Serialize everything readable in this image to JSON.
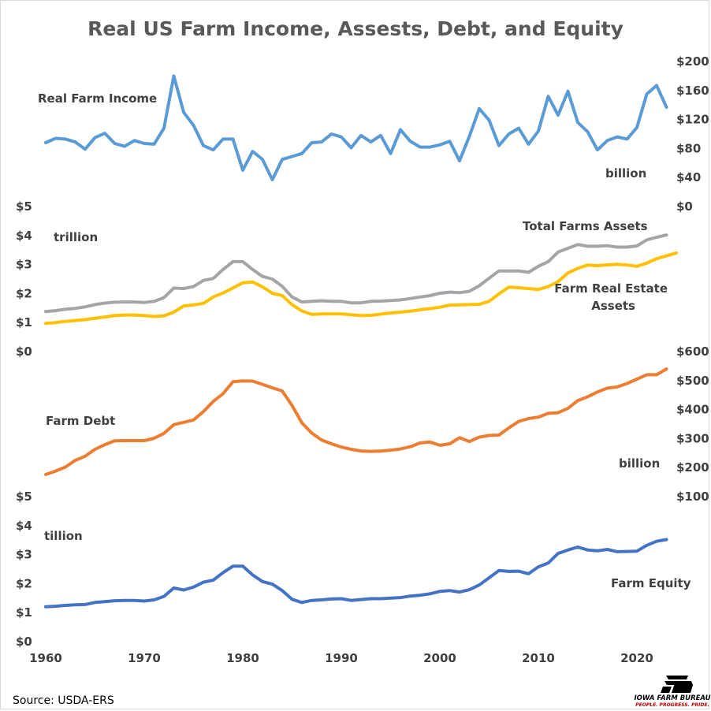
{
  "title": "Real US Farm Income, Assests, Debt, and Equity",
  "source": "Source: USDA-ERS",
  "logo": {
    "name": "IOWA FARM BUREAU",
    "tagline": "PEOPLE. PROGRESS. PRIDE.",
    "mark_color": "#000000",
    "tagline_color": "#c00000"
  },
  "x_ticks": [
    "1960",
    "1970",
    "1980",
    "1990",
    "2000",
    "2010",
    "2020"
  ],
  "labels": {
    "income": "Real Farm Income",
    "income_unit": "billion",
    "assets_unit": "trillion",
    "total_assets": "Total Farms Assets",
    "real_estate_1": "Farm Real Estate",
    "real_estate_2": "Assets",
    "debt": "Farm Debt",
    "debt_unit": "billion",
    "equity_unit": "tillion",
    "equity": "Farm Equity"
  },
  "chart_data": [
    {
      "type": "line",
      "title": "Real Farm Income",
      "axis_side": "right",
      "ylim": [
        0,
        200
      ],
      "y_ticks": [
        "$0",
        "$40",
        "$80",
        "$120",
        "$160",
        "$200"
      ],
      "x_start": 1960,
      "series": [
        {
          "name": "Real Farm Income",
          "color": "#5b9bd5",
          "values": [
            88,
            94,
            93,
            89,
            79,
            95,
            101,
            87,
            83,
            91,
            87,
            86,
            108,
            180,
            130,
            112,
            84,
            78,
            93,
            93,
            50,
            76,
            65,
            37,
            65,
            69,
            73,
            88,
            89,
            100,
            96,
            81,
            98,
            89,
            98,
            73,
            106,
            90,
            82,
            82,
            85,
            90,
            63,
            97,
            135,
            119,
            84,
            100,
            108,
            86,
            104,
            152,
            126,
            159,
            116,
            103,
            78,
            91,
            96,
            93,
            109,
            155,
            167,
            137
          ]
        }
      ]
    },
    {
      "type": "line",
      "title": "Total Farms Assets / Farm Real Estate Assets",
      "axis_side": "left",
      "ylim": [
        0,
        5
      ],
      "y_ticks": [
        "$0",
        "$1",
        "$2",
        "$3",
        "$4",
        "$5"
      ],
      "x_start": 1960,
      "series": [
        {
          "name": "Total Farms Assets",
          "color": "#a5a5a5",
          "values": [
            1.38,
            1.41,
            1.46,
            1.49,
            1.54,
            1.62,
            1.67,
            1.7,
            1.71,
            1.71,
            1.69,
            1.73,
            1.86,
            2.19,
            2.17,
            2.24,
            2.45,
            2.52,
            2.83,
            3.1,
            3.1,
            2.83,
            2.59,
            2.5,
            2.25,
            1.88,
            1.71,
            1.73,
            1.75,
            1.73,
            1.73,
            1.68,
            1.68,
            1.73,
            1.74,
            1.76,
            1.78,
            1.83,
            1.88,
            1.93,
            2.01,
            2.05,
            2.03,
            2.08,
            2.27,
            2.53,
            2.78,
            2.78,
            2.78,
            2.73,
            2.94,
            3.1,
            3.43,
            3.56,
            3.69,
            3.63,
            3.63,
            3.65,
            3.6,
            3.6,
            3.64,
            3.85,
            3.94,
            4.02
          ]
        },
        {
          "name": "Farm Real Estate Assets",
          "color": "#ffc000",
          "values": [
            0.97,
            1.0,
            1.04,
            1.07,
            1.1,
            1.15,
            1.19,
            1.24,
            1.26,
            1.26,
            1.24,
            1.21,
            1.23,
            1.36,
            1.57,
            1.61,
            1.66,
            1.88,
            2.02,
            2.19,
            2.37,
            2.4,
            2.23,
            2.01,
            1.93,
            1.62,
            1.4,
            1.28,
            1.3,
            1.3,
            1.3,
            1.27,
            1.24,
            1.25,
            1.29,
            1.33,
            1.36,
            1.39,
            1.44,
            1.48,
            1.53,
            1.6,
            1.61,
            1.62,
            1.63,
            1.73,
            1.99,
            2.22,
            2.2,
            2.17,
            2.14,
            2.24,
            2.41,
            2.71,
            2.87,
            2.98,
            2.96,
            2.99,
            3.01,
            2.98,
            2.94,
            3.05,
            3.2,
            3.3,
            3.4
          ]
        }
      ]
    },
    {
      "type": "line",
      "title": "Farm Debt",
      "axis_side": "right",
      "ylim": [
        100,
        600
      ],
      "y_ticks": [
        "$100",
        "$200",
        "$300",
        "$400",
        "$500",
        "$600"
      ],
      "x_start": 1960,
      "series": [
        {
          "name": "Farm Debt",
          "color": "#ed7d31",
          "values": [
            176,
            188,
            202,
            225,
            239,
            263,
            279,
            292,
            293,
            293,
            293,
            301,
            318,
            348,
            356,
            364,
            393,
            428,
            455,
            496,
            499,
            498,
            487,
            475,
            464,
            414,
            354,
            319,
            295,
            282,
            271,
            263,
            257,
            256,
            257,
            260,
            264,
            272,
            285,
            288,
            277,
            282,
            303,
            290,
            305,
            311,
            312,
            337,
            359,
            369,
            374,
            387,
            389,
            404,
            431,
            444,
            461,
            474,
            478,
            490,
            505,
            520,
            520,
            540
          ]
        }
      ]
    },
    {
      "type": "line",
      "title": "Farm Equity",
      "axis_side": "left",
      "ylim": [
        0,
        5
      ],
      "y_ticks": [
        "$0",
        "$1",
        "$2",
        "$3",
        "$4",
        "$5"
      ],
      "x_start": 1960,
      "series": [
        {
          "name": "Farm Equity",
          "color": "#4472c4",
          "values": [
            1.2,
            1.22,
            1.25,
            1.27,
            1.28,
            1.35,
            1.38,
            1.41,
            1.42,
            1.42,
            1.4,
            1.44,
            1.56,
            1.85,
            1.78,
            1.88,
            2.05,
            2.12,
            2.38,
            2.6,
            2.6,
            2.3,
            2.07,
            1.98,
            1.76,
            1.46,
            1.35,
            1.42,
            1.44,
            1.47,
            1.48,
            1.42,
            1.45,
            1.48,
            1.48,
            1.5,
            1.52,
            1.57,
            1.6,
            1.65,
            1.73,
            1.76,
            1.71,
            1.79,
            1.95,
            2.2,
            2.45,
            2.42,
            2.43,
            2.34,
            2.58,
            2.71,
            3.04,
            3.16,
            3.26,
            3.16,
            3.13,
            3.18,
            3.1,
            3.11,
            3.12,
            3.32,
            3.46,
            3.52
          ]
        }
      ]
    }
  ]
}
